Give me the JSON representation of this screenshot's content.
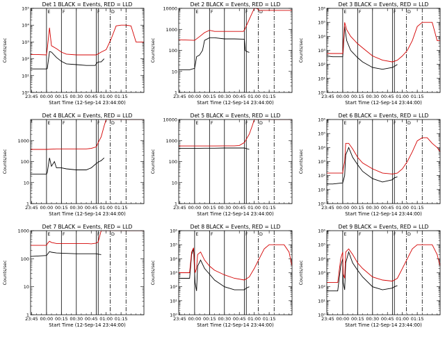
{
  "time_axis": {
    "ticks": [
      "23:45",
      "00:00",
      "00:15",
      "00:30",
      "00:45",
      "01:00",
      "01:15"
    ],
    "xlabel": "Start Time (12-Sep-14 23:44:00)",
    "ylabel": "Counts/sec",
    "xlim_minutes": [
      -16,
      98
    ]
  },
  "legend_text": "= Events, RED = LLD",
  "colors": {
    "events": "#000000",
    "lld": "#d40000"
  },
  "chart_data": [
    {
      "type": "line",
      "title": "Det 1 BLACK = Events, RED = LLD",
      "scale": "log",
      "ylim": [
        1,
        100000
      ],
      "yticks": [
        {
          "v": 1,
          "label": "10⁰"
        },
        {
          "v": 10,
          "label": "10¹"
        },
        {
          "v": 100,
          "label": "10²"
        },
        {
          "v": 1000,
          "label": "10³"
        },
        {
          "v": 10000,
          "label": "10⁴"
        },
        {
          "v": 100000,
          "label": "10⁵"
        }
      ],
      "solid_lines": [
        0,
        15,
        30,
        50,
        52
      ],
      "dashdot_lines": [
        64,
        80
      ],
      "flag_labels": [
        "E",
        "F",
        "F",
        "D"
      ],
      "series": [
        {
          "x": [
            -16,
            -10,
            0,
            0.8,
            3,
            5,
            10,
            15,
            20,
            30,
            40,
            49,
            51,
            53,
            55,
            58
          ],
          "y": [
            25,
            25,
            25,
            26,
            270,
            250,
            120,
            70,
            50,
            45,
            40,
            40,
            60,
            65,
            65,
            100
          ]
        },
        {
          "x": [
            -16,
            -10,
            0,
            1,
            3,
            5,
            10,
            15,
            20,
            30,
            40,
            50,
            55,
            60,
            65,
            70,
            75,
            80,
            85,
            90,
            95,
            98
          ],
          "y": [
            180,
            180,
            170,
            500,
            7000,
            600,
            400,
            250,
            190,
            170,
            170,
            170,
            250,
            350,
            1500,
            9000,
            10000,
            10000,
            9000,
            1000,
            1000,
            1000
          ]
        }
      ]
    },
    {
      "type": "line",
      "title": "Det 2 BLACK = Events, RED = LLD",
      "scale": "log",
      "ylim": [
        1,
        10000
      ],
      "yticks": [
        {
          "v": 1,
          "label": "1"
        },
        {
          "v": 10,
          "label": "10"
        },
        {
          "v": 100,
          "label": "100"
        },
        {
          "v": 1000,
          "label": "1000"
        },
        {
          "v": 10000,
          "label": "10000"
        }
      ],
      "solid_lines": [
        0,
        15,
        30,
        50,
        52
      ],
      "dashdot_lines": [
        64,
        80
      ],
      "flag_labels": [
        "E",
        "F",
        "F",
        "D"
      ],
      "series": [
        {
          "x": [
            -16,
            -10,
            -5,
            0,
            1,
            2,
            5,
            8,
            10,
            15,
            20,
            30,
            40,
            50,
            51,
            52,
            55
          ],
          "y": [
            12,
            12,
            12,
            14,
            25,
            50,
            60,
            100,
            300,
            400,
            400,
            350,
            350,
            340,
            100,
            90,
            80
          ]
        },
        {
          "x": [
            -16,
            0,
            5,
            10,
            15,
            20,
            30,
            40,
            49,
            50,
            55,
            60,
            62,
            64,
            65,
            70,
            80,
            90,
            95,
            98
          ],
          "y": [
            320,
            300,
            450,
            700,
            900,
            800,
            800,
            800,
            800,
            900,
            3000,
            10000,
            10000,
            9000,
            8000,
            8000,
            8000,
            8000,
            8000,
            8000
          ]
        }
      ]
    },
    {
      "type": "line",
      "title": "Det 3 BLACK = Events, RED = LLD",
      "scale": "log",
      "ylim": [
        1,
        1000000
      ],
      "yticks": [
        {
          "v": 1,
          "label": "10⁰"
        },
        {
          "v": 10,
          "label": "10¹"
        },
        {
          "v": 100,
          "label": "10²"
        },
        {
          "v": 1000,
          "label": "10³"
        },
        {
          "v": 10000,
          "label": "10⁴"
        },
        {
          "v": 100000,
          "label": "10⁵"
        },
        {
          "v": 1000000,
          "label": "10⁶"
        }
      ],
      "solid_lines": [
        0,
        15,
        30,
        50,
        52
      ],
      "dashdot_lines": [
        64,
        80
      ],
      "flag_labels": [
        "E",
        "F",
        "F",
        "D"
      ],
      "series": [
        {
          "x": [
            -16,
            -10,
            0,
            0.5,
            2,
            4,
            8,
            15,
            20,
            30,
            40,
            50,
            53,
            55
          ],
          "y": [
            400,
            350,
            350,
            1000,
            50000,
            5000,
            1000,
            300,
            150,
            60,
            45,
            60,
            80,
            100
          ]
        },
        {
          "x": [
            -16,
            -10,
            0,
            0.5,
            2,
            4,
            8,
            15,
            20,
            30,
            40,
            50,
            55,
            60,
            65,
            70,
            75,
            80,
            90,
            95,
            98
          ],
          "y": [
            600,
            600,
            600,
            2000,
            100000,
            30000,
            10000,
            3000,
            1500,
            400,
            200,
            150,
            200,
            400,
            1000,
            5000,
            50000,
            100000,
            100000,
            5000,
            5000
          ]
        }
      ]
    },
    {
      "type": "line",
      "title": "Det 4 BLACK = Events, RED = LLD",
      "scale": "log",
      "ylim": [
        1,
        10000
      ],
      "yticks": [
        {
          "v": 1,
          "label": "1"
        },
        {
          "v": 10,
          "label": "10"
        },
        {
          "v": 100,
          "label": "100"
        },
        {
          "v": 1000,
          "label": "1000"
        }
      ],
      "solid_lines": [
        0,
        15,
        30,
        50,
        52
      ],
      "dashdot_lines": [
        64,
        80
      ],
      "flag_labels": [
        "E",
        "F",
        "F",
        "D"
      ],
      "series": [
        {
          "x": [
            -16,
            -10,
            0,
            0.8,
            3,
            5,
            8,
            10,
            15,
            20,
            30,
            40,
            45,
            50,
            53,
            55,
            58
          ],
          "y": [
            25,
            25,
            25,
            30,
            150,
            60,
            100,
            50,
            50,
            45,
            40,
            40,
            50,
            80,
            100,
            110,
            150
          ]
        },
        {
          "x": [
            -16,
            0,
            10,
            20,
            30,
            40,
            45,
            50,
            52,
            55,
            58,
            60,
            65,
            70,
            80,
            90,
            95,
            98
          ],
          "y": [
            380,
            380,
            400,
            400,
            400,
            400,
            420,
            500,
            800,
            1500,
            5000,
            10000,
            10000,
            10000,
            10000,
            10000,
            10000,
            10000
          ]
        }
      ]
    },
    {
      "type": "line",
      "title": "Det 5 BLACK = Events, RED = LLD",
      "scale": "log",
      "ylim": [
        1,
        10000
      ],
      "yticks": [
        {
          "v": 1,
          "label": "1"
        },
        {
          "v": 10,
          "label": "10"
        },
        {
          "v": 100,
          "label": "100"
        },
        {
          "v": 1000,
          "label": "1000"
        },
        {
          "v": 10000,
          "label": "10000"
        }
      ],
      "solid_lines": [
        0,
        15,
        30,
        50,
        52
      ],
      "dashdot_lines": [
        64,
        80
      ],
      "flag_labels": [
        "E",
        "F",
        "F",
        "D"
      ],
      "series": [
        {
          "x": [
            -16,
            0,
            10,
            20,
            30,
            40,
            50,
            55
          ],
          "y": [
            420,
            420,
            430,
            430,
            440,
            440,
            440,
            380
          ]
        },
        {
          "x": [
            -16,
            0,
            10,
            20,
            30,
            40,
            45,
            50,
            55,
            58,
            60,
            65,
            70,
            75,
            80,
            90,
            98
          ],
          "y": [
            550,
            550,
            550,
            550,
            560,
            560,
            580,
            800,
            2000,
            5000,
            10000,
            10000,
            10000,
            10000,
            10000,
            10000,
            10000
          ]
        }
      ]
    },
    {
      "type": "line",
      "title": "Det 6 BLACK = Events, RED = LLD",
      "scale": "log",
      "ylim": [
        1,
        1000000
      ],
      "yticks": [
        {
          "v": 1,
          "label": "10⁰"
        },
        {
          "v": 10,
          "label": "10¹"
        },
        {
          "v": 100,
          "label": "10²"
        },
        {
          "v": 1000,
          "label": "10³"
        },
        {
          "v": 10000,
          "label": "10⁴"
        },
        {
          "v": 100000,
          "label": "10⁵"
        },
        {
          "v": 1000000,
          "label": "10⁶"
        }
      ],
      "solid_lines": [
        0,
        15,
        30,
        50,
        52
      ],
      "dashdot_lines": [
        64,
        80
      ],
      "flag_labels": [
        "E",
        "F",
        "F",
        "D"
      ],
      "series": [
        {
          "x": [
            -16,
            -10,
            0,
            0.5,
            2,
            3,
            6,
            10,
            15,
            20,
            30,
            40,
            50,
            52,
            55
          ],
          "y": [
            25,
            25,
            30,
            40,
            100,
            3000,
            10000,
            2000,
            600,
            200,
            60,
            35,
            50,
            70,
            80
          ]
        },
        {
          "x": [
            -16,
            -10,
            0,
            0.5,
            2,
            3,
            6,
            10,
            15,
            20,
            30,
            40,
            50,
            55,
            60,
            65,
            70,
            75,
            80,
            85,
            90,
            95,
            98
          ],
          "y": [
            150,
            150,
            150,
            300,
            1000,
            20000,
            20000,
            8000,
            2000,
            800,
            300,
            150,
            130,
            150,
            300,
            1000,
            5000,
            30000,
            50000,
            50000,
            20000,
            10000,
            5000
          ]
        }
      ]
    },
    {
      "type": "line",
      "title": "Det 7 BLACK = Events, RED = LLD",
      "scale": "log",
      "ylim": [
        1,
        1000
      ],
      "yticks": [
        {
          "v": 1,
          "label": "1"
        },
        {
          "v": 10,
          "label": "10"
        },
        {
          "v": 100,
          "label": "100"
        },
        {
          "v": 1000,
          "label": "1000"
        }
      ],
      "solid_lines": [
        0,
        15,
        30,
        50,
        52
      ],
      "dashdot_lines": [
        64,
        80
      ],
      "flag_labels": [
        "E",
        "F",
        "F",
        "D"
      ],
      "series": [
        {
          "x": [
            -16,
            0,
            0.8,
            3,
            5,
            10,
            20,
            30,
            40,
            50,
            52,
            55
          ],
          "y": [
            120,
            130,
            140,
            180,
            170,
            160,
            155,
            150,
            150,
            150,
            145,
            140
          ]
        },
        {
          "x": [
            -16,
            0,
            1,
            3,
            5,
            10,
            20,
            30,
            40,
            45,
            50,
            52,
            55,
            58,
            60,
            65,
            98
          ],
          "y": [
            300,
            300,
            350,
            420,
            380,
            350,
            350,
            350,
            350,
            340,
            360,
            400,
            1000,
            1000,
            1000,
            1000,
            1000
          ]
        }
      ]
    },
    {
      "type": "line",
      "title": "Det 8 BLACK = Events, RED = LLD",
      "scale": "log",
      "ylim": [
        1,
        1000000
      ],
      "yticks": [
        {
          "v": 1,
          "label": "10⁰"
        },
        {
          "v": 10,
          "label": "10¹"
        },
        {
          "v": 100,
          "label": "10²"
        },
        {
          "v": 1000,
          "label": "10³"
        },
        {
          "v": 10000,
          "label": "10⁴"
        },
        {
          "v": 100000,
          "label": "10⁵"
        },
        {
          "v": 1000000,
          "label": "10⁶"
        }
      ],
      "solid_lines": [
        0,
        15,
        30,
        50,
        52
      ],
      "dashdot_lines": [
        64,
        80
      ],
      "flag_labels": [
        "E",
        "F",
        "F",
        "D"
      ],
      "series": [
        {
          "x": [
            -16,
            -10,
            -5,
            -3,
            -1,
            0,
            0.5,
            2,
            3,
            6,
            10,
            15,
            20,
            30,
            40,
            50,
            52,
            55
          ],
          "y": [
            400,
            400,
            400,
            20000,
            50000,
            1000,
            200,
            50,
            3000,
            8000,
            2000,
            800,
            300,
            100,
            60,
            60,
            80,
            100
          ]
        },
        {
          "x": [
            -16,
            -10,
            -5,
            -3,
            -1,
            0,
            0.5,
            2,
            3,
            6,
            10,
            15,
            20,
            30,
            40,
            50,
            55,
            60,
            65,
            70,
            75,
            80,
            90,
            95,
            98
          ],
          "y": [
            1000,
            1000,
            1000,
            30000,
            60000,
            3000,
            1000,
            2000,
            20000,
            30000,
            8000,
            3000,
            1500,
            700,
            400,
            300,
            500,
            2000,
            10000,
            50000,
            100000,
            100000,
            100000,
            30000,
            3000
          ]
        }
      ]
    },
    {
      "type": "line",
      "title": "Det 9 BLACK = Events, RED = LLD",
      "scale": "log",
      "ylim": [
        1,
        1000000
      ],
      "yticks": [
        {
          "v": 1,
          "label": "10⁰"
        },
        {
          "v": 10,
          "label": "10¹"
        },
        {
          "v": 100,
          "label": "10²"
        },
        {
          "v": 1000,
          "label": "10³"
        },
        {
          "v": 10000,
          "label": "10⁴"
        },
        {
          "v": 100000,
          "label": "10⁵"
        },
        {
          "v": 1000000,
          "label": "10⁶"
        }
      ],
      "solid_lines": [
        0,
        15,
        30,
        50,
        52
      ],
      "dashdot_lines": [
        64,
        80
      ],
      "flag_labels": [
        "E",
        "F",
        "F",
        "D"
      ],
      "series": [
        {
          "x": [
            -16,
            -10,
            -5,
            -2,
            0,
            0.5,
            2,
            3,
            6,
            10,
            15,
            20,
            30,
            40,
            50,
            52,
            55
          ],
          "y": [
            50,
            50,
            50,
            3000,
            10000,
            200,
            60,
            5000,
            30000,
            5000,
            1500,
            500,
            100,
            60,
            80,
            100,
            120
          ]
        },
        {
          "x": [
            -16,
            -10,
            -5,
            -2,
            0,
            0.5,
            2,
            3,
            6,
            10,
            15,
            20,
            30,
            40,
            50,
            55,
            60,
            65,
            70,
            75,
            80,
            90,
            95,
            98
          ],
          "y": [
            200,
            200,
            200,
            10000,
            30000,
            800,
            400,
            30000,
            50000,
            20000,
            5000,
            2000,
            500,
            300,
            250,
            400,
            2000,
            10000,
            50000,
            100000,
            100000,
            100000,
            20000,
            3000
          ]
        }
      ]
    }
  ]
}
